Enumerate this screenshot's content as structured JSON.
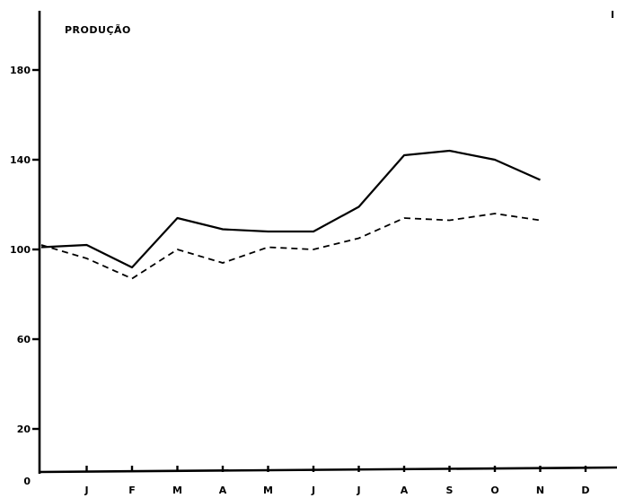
{
  "chart_data": {
    "type": "line",
    "title": "PRODUÇÃO",
    "corner_mark": "I",
    "categories": [
      "",
      "J",
      "F",
      "M",
      "A",
      "M",
      "J",
      "J",
      "A",
      "S",
      "O",
      "N",
      "D"
    ],
    "y_ticks": [
      "0",
      "20",
      "60",
      "100",
      "140",
      "180"
    ],
    "ylim": [
      0,
      210
    ],
    "grid": false,
    "series": [
      {
        "style": "solid",
        "values": [
          101,
          102,
          92,
          114,
          109,
          108,
          108,
          119,
          142,
          144,
          140,
          131,
          null
        ]
      },
      {
        "style": "dashed",
        "values": [
          102,
          96,
          87,
          100,
          94,
          101,
          100,
          105,
          114,
          113,
          116,
          113,
          null
        ]
      }
    ]
  }
}
